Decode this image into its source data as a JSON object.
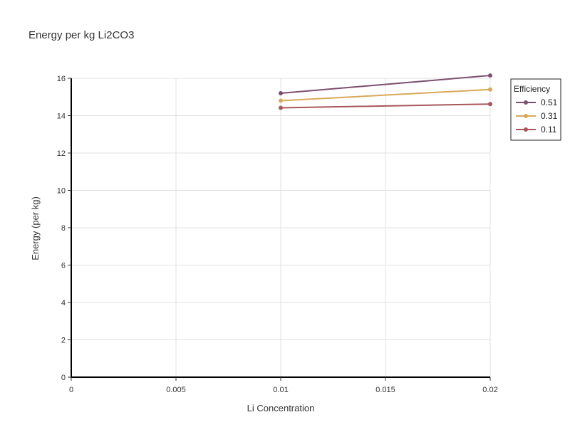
{
  "chart_data": {
    "type": "line",
    "title": "Energy per kg Li2CO3",
    "xlabel": "Li Concentration",
    "ylabel": "Energy (per kg)",
    "xlim": [
      0,
      0.02
    ],
    "ylim": [
      0,
      16
    ],
    "x_ticks": [
      "0",
      "0.005",
      "0.01",
      "0.015",
      "0.02"
    ],
    "x_tick_values": [
      0,
      0.005,
      0.01,
      0.015,
      0.02
    ],
    "y_ticks": [
      "0",
      "2",
      "4",
      "6",
      "8",
      "10",
      "12",
      "14",
      "16"
    ],
    "y_tick_values": [
      0,
      2,
      4,
      6,
      8,
      10,
      12,
      14,
      16
    ],
    "grid": true,
    "legend": {
      "title": "Efficiency",
      "placement": "top-right"
    },
    "x": [
      0.01,
      0.02
    ],
    "series": [
      {
        "name": "0.51",
        "color": "#7b4f6e",
        "values": [
          15.2,
          16.15
        ]
      },
      {
        "name": "0.31",
        "color": "#d8a85a",
        "values": [
          14.8,
          15.4
        ]
      },
      {
        "name": "0.11",
        "color": "#a8565a",
        "values": [
          14.42,
          14.62
        ]
      }
    ]
  }
}
